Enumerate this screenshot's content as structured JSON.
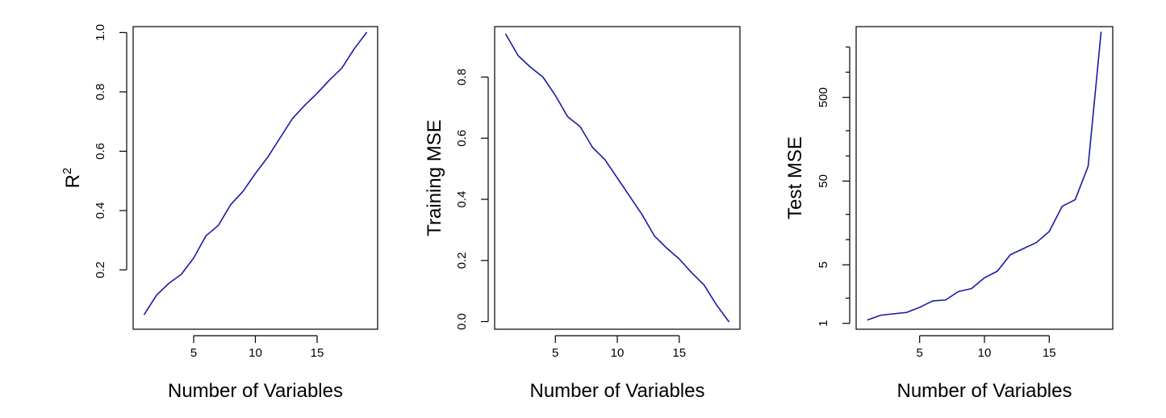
{
  "colors": {
    "line": "#1a1aa6",
    "axis": "#000000",
    "background": "#ffffff"
  },
  "chart_data": [
    {
      "type": "line",
      "title": "",
      "xlabel": "Number of Variables",
      "ylabel": "R",
      "ylabel_superscript": "2",
      "xlim": [
        0.1,
        19.9
      ],
      "ylim": [
        0.0,
        1.02
      ],
      "y_scale": "linear",
      "x_ticks": [
        5,
        10,
        15
      ],
      "x_tick_labels": [
        "5",
        "10",
        "15"
      ],
      "y_ticks": [
        0.2,
        0.4,
        0.6,
        0.8,
        1.0
      ],
      "y_tick_labels": [
        "0.2",
        "0.4",
        "0.6",
        "0.8",
        "1.0"
      ],
      "grid": false,
      "legend": "none",
      "series": [
        {
          "x": [
            1,
            2,
            3,
            4,
            5,
            6,
            7,
            8,
            9,
            10,
            11,
            12,
            13,
            14,
            15,
            16,
            17,
            18,
            19
          ],
          "values": [
            0.05,
            0.115,
            0.155,
            0.185,
            0.24,
            0.315,
            0.35,
            0.42,
            0.465,
            0.525,
            0.58,
            0.645,
            0.71,
            0.755,
            0.795,
            0.84,
            0.88,
            0.945,
            1.0
          ]
        }
      ]
    },
    {
      "type": "line",
      "title": "",
      "xlabel": "Number of Variables",
      "ylabel": "Training MSE",
      "xlim": [
        0.1,
        19.9
      ],
      "ylim": [
        -0.025,
        0.965
      ],
      "y_scale": "linear",
      "x_ticks": [
        5,
        10,
        15
      ],
      "x_tick_labels": [
        "5",
        "10",
        "15"
      ],
      "y_ticks": [
        0.0,
        0.2,
        0.4,
        0.6,
        0.8
      ],
      "y_tick_labels": [
        "0.0",
        "0.2",
        "0.4",
        "0.6",
        "0.8"
      ],
      "grid": false,
      "legend": "none",
      "series": [
        {
          "x": [
            1,
            2,
            3,
            4,
            5,
            6,
            7,
            8,
            9,
            10,
            11,
            12,
            13,
            14,
            15,
            16,
            17,
            18,
            19
          ],
          "values": [
            0.94,
            0.87,
            0.832,
            0.8,
            0.74,
            0.67,
            0.638,
            0.57,
            0.53,
            0.47,
            0.41,
            0.35,
            0.28,
            0.24,
            0.205,
            0.16,
            0.12,
            0.055,
            0.0
          ]
        }
      ]
    },
    {
      "type": "line",
      "title": "",
      "xlabel": "Number of Variables",
      "ylabel": "Test MSE",
      "xlim": [
        0.1,
        19.9
      ],
      "ylim": [
        0.85,
        3500
      ],
      "y_scale": "log",
      "x_ticks": [
        5,
        10,
        15
      ],
      "x_tick_labels": [
        "5",
        "10",
        "15"
      ],
      "y_ticks": [
        1,
        5,
        50,
        500
      ],
      "y_tick_labels": [
        "1",
        "5",
        "50",
        "500"
      ],
      "y_minor_ticks": [
        2,
        10,
        20,
        100,
        200,
        1000,
        2000
      ],
      "grid": false,
      "legend": "none",
      "series": [
        {
          "x": [
            1,
            2,
            3,
            4,
            5,
            6,
            7,
            8,
            9,
            10,
            11,
            12,
            13,
            14,
            15,
            16,
            17,
            18,
            19
          ],
          "values": [
            1.1,
            1.25,
            1.3,
            1.35,
            1.55,
            1.85,
            1.9,
            2.4,
            2.6,
            3.5,
            4.2,
            6.6,
            7.8,
            9.2,
            12.5,
            25,
            30,
            75,
            3000
          ]
        }
      ]
    }
  ]
}
